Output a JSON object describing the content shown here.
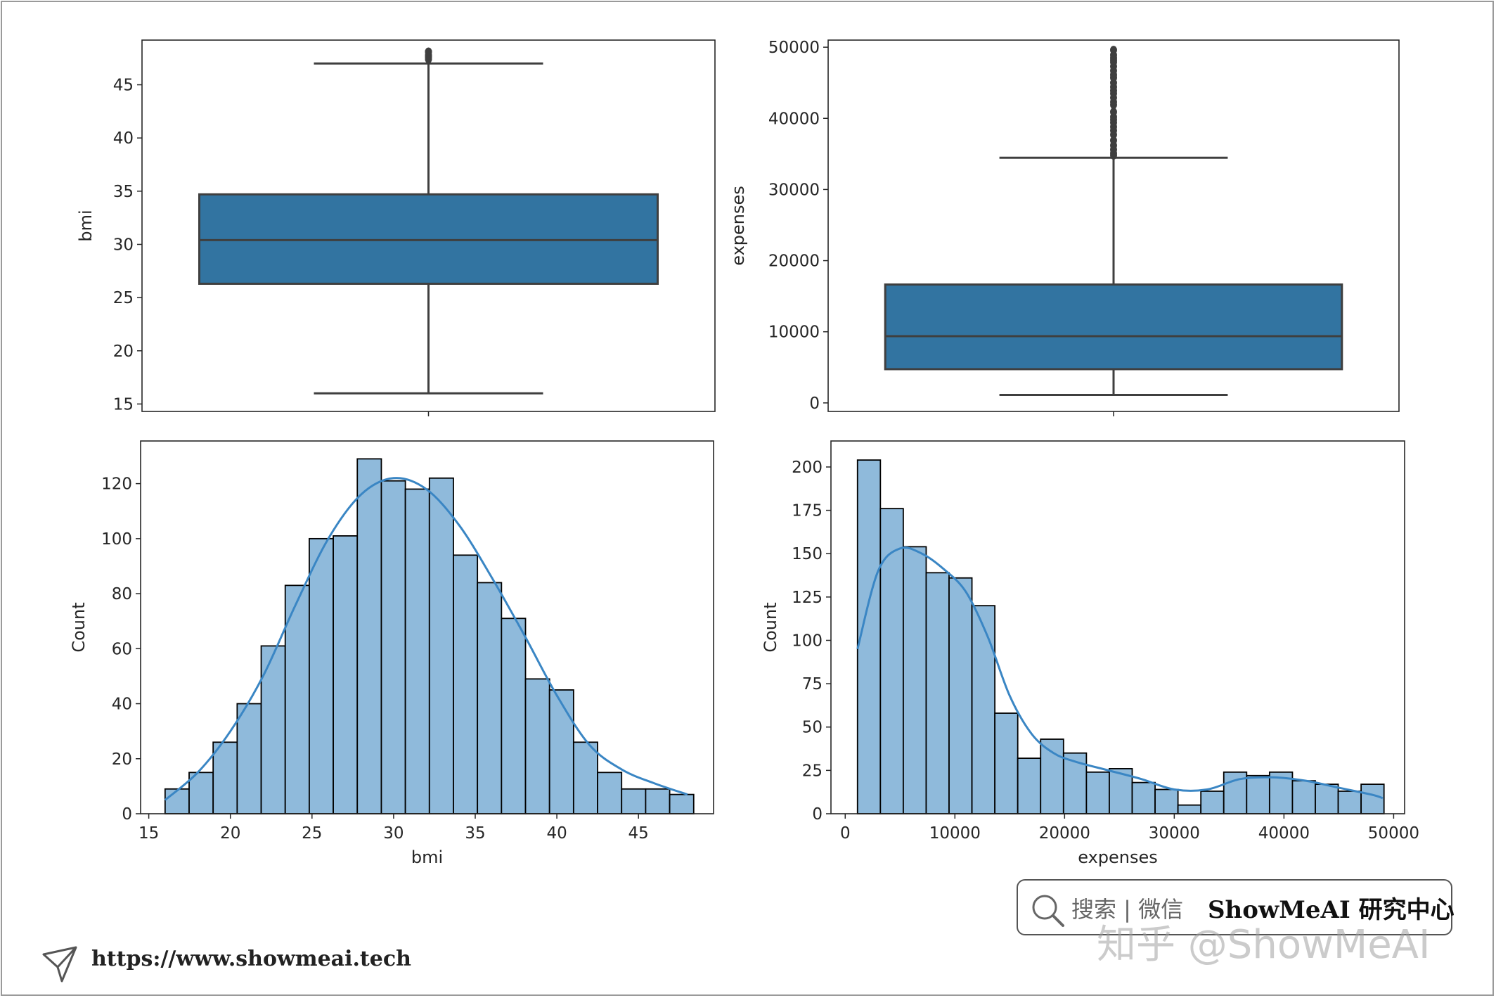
{
  "colors": {
    "box_fill": "#3274a1",
    "box_line": "#3f3f3f",
    "hist_fill": "#8fbadb",
    "hist_edge": "#000000",
    "kde_line": "#3a86c4"
  },
  "footer": {
    "url": "https://www.showmeai.tech",
    "icon": "send-icon"
  },
  "badge": {
    "search_icon": "search-icon",
    "text": "搜索 | 微信",
    "brand": "ShowMeAI 研究中心"
  },
  "watermark": "知乎 @ShowMeAI",
  "chart_data": [
    {
      "type": "box",
      "ylabel": "bmi",
      "xlabel": "",
      "ylim": [
        14.3,
        49.2
      ],
      "yticks": [
        15,
        20,
        25,
        30,
        35,
        40,
        45
      ],
      "box": {
        "whisker_low": 16.0,
        "q1": 26.3,
        "median": 30.4,
        "q3": 34.7,
        "whisker_high": 47.0
      },
      "outliers": [
        47.4,
        47.6,
        47.7,
        47.8,
        48.1,
        48.1
      ],
      "grid": false
    },
    {
      "type": "box",
      "ylabel": "expenses",
      "xlabel": "",
      "ylim": [
        -1200,
        51000
      ],
      "yticks": [
        0,
        10000,
        20000,
        30000,
        40000,
        50000
      ],
      "box": {
        "whisker_low": 1120,
        "q1": 4740,
        "median": 9380,
        "q3": 16640,
        "whisker_high": 34470
      },
      "outliers": [
        34800,
        35100,
        35600,
        36200,
        36900,
        37700,
        38300,
        38800,
        39400,
        39800,
        40200,
        40900,
        41900,
        42300,
        42900,
        43500,
        43900,
        44400,
        45000,
        45700,
        46100,
        46700,
        47300,
        47900,
        48200,
        48500,
        48900,
        49600
      ],
      "grid": false
    },
    {
      "type": "bar",
      "subtype": "histogram",
      "xlabel": "bmi",
      "ylabel": "Count",
      "xlim": [
        14.5,
        49.6
      ],
      "ylim": [
        0,
        135.5
      ],
      "xticks": [
        15,
        20,
        25,
        30,
        35,
        40,
        45
      ],
      "yticks": [
        0,
        20,
        40,
        60,
        80,
        100,
        120
      ],
      "bin_start": 16.0,
      "bin_width": 1.472,
      "values": [
        9,
        15,
        26,
        40,
        61,
        83,
        100,
        101,
        129,
        121,
        118,
        122,
        94,
        84,
        71,
        49,
        45,
        26,
        15,
        9,
        9,
        7
      ],
      "kde": {
        "x": [
          16.0,
          18,
          20,
          22,
          24,
          26,
          28,
          30,
          32,
          34,
          36,
          38,
          40,
          42,
          44,
          46,
          48
        ],
        "y": [
          5,
          15,
          30,
          50,
          76,
          100,
          116,
          122,
          118,
          105,
          86,
          65,
          43,
          25,
          16,
          11,
          7
        ]
      },
      "grid": false
    },
    {
      "type": "bar",
      "subtype": "histogram",
      "xlabel": "expenses",
      "ylabel": "Count",
      "xlim": [
        -1300,
        51000
      ],
      "ylim": [
        0,
        215
      ],
      "xticks": [
        0,
        10000,
        20000,
        30000,
        40000,
        50000
      ],
      "yticks": [
        0,
        25,
        50,
        75,
        100,
        125,
        150,
        175,
        200
      ],
      "bin_start": 1120,
      "bin_width": 2087,
      "values": [
        204,
        176,
        154,
        139,
        136,
        120,
        58,
        32,
        43,
        35,
        24,
        26,
        18,
        14,
        5,
        13,
        24,
        22,
        24,
        19,
        17,
        13,
        17
      ],
      "kde": {
        "x": [
          1120,
          3000,
          5000,
          7000,
          9000,
          11000,
          13000,
          15000,
          17000,
          19000,
          21000,
          24000,
          27000,
          30000,
          33000,
          36000,
          39000,
          42000,
          45000,
          48000,
          49000
        ],
        "y": [
          95,
          140,
          153,
          150,
          141,
          128,
          102,
          68,
          46,
          35,
          30,
          25,
          20,
          14,
          14,
          20,
          21,
          19,
          15,
          11,
          9
        ]
      },
      "grid": false
    }
  ]
}
